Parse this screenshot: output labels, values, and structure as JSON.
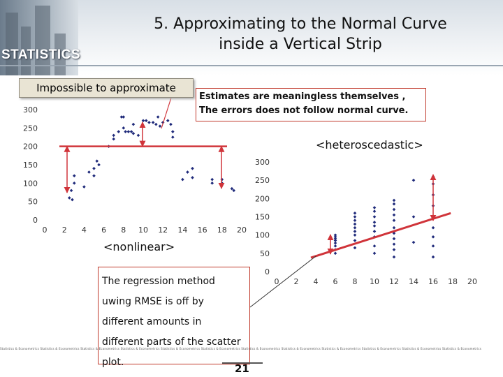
{
  "header": {
    "brand": "STATISTICS",
    "title_line1": "5.  Approximating to the Normal Curve",
    "title_line2": "inside a Vertical Strip"
  },
  "callouts": {
    "impossible": "Impossible to approximate",
    "estimates_line1": "Estimates are meaningless themselves ,",
    "estimates_line2": "The errors does not follow normal curve.",
    "heteroscedastic": "<heteroscedastic>",
    "nonlinear": "<nonlinear>",
    "regression_lines": [
      "The regression method",
      "uwing RMSE is off by",
      "different amounts in",
      "different parts of the scatter",
      "plot."
    ]
  },
  "footer": {
    "strip": "Statistics & Econometrics Statistics & Econometrics Statistics & Econometrics Statistics & Econometrics Statistics & Econometrics Statistics & Econometrics Statistics & Econometrics Statistics & Econometrics Statistics & Econometrics Statistics & Econometrics Statistics & Econometrics Statistics & Econometrics",
    "page": "21"
  },
  "colors": {
    "points": "#1f2a7a",
    "arrows": "#d0343a",
    "line": "#d0343a"
  },
  "chart_data": [
    {
      "type": "scatter",
      "title": "",
      "xlabel": "",
      "ylabel": "",
      "xlim": [
        0,
        20
      ],
      "ylim": [
        0,
        300
      ],
      "xticks": [
        0,
        2,
        4,
        6,
        8,
        10,
        12,
        14,
        16,
        18,
        20
      ],
      "yticks": [
        0,
        50,
        100,
        150,
        200,
        250,
        300
      ],
      "annotation": "<nonlinear>",
      "reference_line_y": 200,
      "points": [
        [
          2.5,
          60
        ],
        [
          2.7,
          80
        ],
        [
          3,
          100
        ],
        [
          3,
          120
        ],
        [
          2.8,
          55
        ],
        [
          4,
          90
        ],
        [
          4.5,
          130
        ],
        [
          5,
          120
        ],
        [
          5,
          140
        ],
        [
          5.5,
          150
        ],
        [
          5.3,
          160
        ],
        [
          6.5,
          200
        ],
        [
          7,
          220
        ],
        [
          7,
          230
        ],
        [
          7.5,
          240
        ],
        [
          7.8,
          280
        ],
        [
          8,
          280
        ],
        [
          8,
          250
        ],
        [
          8.2,
          240
        ],
        [
          8.5,
          240
        ],
        [
          8.8,
          240
        ],
        [
          9,
          260
        ],
        [
          9,
          235
        ],
        [
          9.5,
          230
        ],
        [
          10,
          270
        ],
        [
          10.3,
          270
        ],
        [
          10.6,
          265
        ],
        [
          11,
          265
        ],
        [
          11.3,
          260
        ],
        [
          11.5,
          280
        ],
        [
          11.7,
          255
        ],
        [
          12,
          265
        ],
        [
          12.5,
          270
        ],
        [
          12.8,
          260
        ],
        [
          13,
          240
        ],
        [
          13,
          225
        ],
        [
          14,
          110
        ],
        [
          14.5,
          130
        ],
        [
          15,
          115
        ],
        [
          15,
          140
        ],
        [
          17,
          110
        ],
        [
          17,
          100
        ],
        [
          18,
          100
        ],
        [
          18,
          110
        ],
        [
          19,
          85
        ],
        [
          19.2,
          80
        ]
      ]
    },
    {
      "type": "scatter",
      "title": "",
      "xlabel": "",
      "ylabel": "",
      "xlim": [
        0,
        20
      ],
      "ylim": [
        0,
        300
      ],
      "xticks": [
        0,
        2,
        4,
        6,
        8,
        10,
        12,
        14,
        16,
        18,
        20
      ],
      "yticks": [
        0,
        50,
        100,
        150,
        200,
        250,
        300
      ],
      "annotation": "<heteroscedastic>",
      "regression_line": [
        [
          3.5,
          38
        ],
        [
          17.8,
          160
        ]
      ],
      "points": [
        [
          6,
          50
        ],
        [
          6,
          60
        ],
        [
          6,
          70
        ],
        [
          6,
          78
        ],
        [
          6,
          85
        ],
        [
          6,
          90
        ],
        [
          6,
          95
        ],
        [
          6,
          100
        ],
        [
          8,
          65
        ],
        [
          8,
          85
        ],
        [
          8,
          100
        ],
        [
          8,
          110
        ],
        [
          8,
          120
        ],
        [
          8,
          130
        ],
        [
          8,
          140
        ],
        [
          8,
          150
        ],
        [
          8,
          160
        ],
        [
          10,
          50
        ],
        [
          10,
          70
        ],
        [
          10,
          95
        ],
        [
          10,
          110
        ],
        [
          10,
          125
        ],
        [
          10,
          135
        ],
        [
          10,
          150
        ],
        [
          10,
          165
        ],
        [
          10,
          175
        ],
        [
          12,
          40
        ],
        [
          12,
          60
        ],
        [
          12,
          75
        ],
        [
          12,
          90
        ],
        [
          12,
          105
        ],
        [
          12,
          120
        ],
        [
          12,
          140
        ],
        [
          12,
          155
        ],
        [
          12,
          170
        ],
        [
          12,
          185
        ],
        [
          12,
          195
        ],
        [
          14,
          80
        ],
        [
          14,
          150
        ],
        [
          14,
          250
        ],
        [
          16,
          40
        ],
        [
          16,
          70
        ],
        [
          16,
          95
        ],
        [
          16,
          120
        ],
        [
          16,
          150
        ],
        [
          16,
          180
        ],
        [
          16,
          210
        ],
        [
          16,
          240
        ],
        [
          16,
          260
        ]
      ]
    }
  ]
}
